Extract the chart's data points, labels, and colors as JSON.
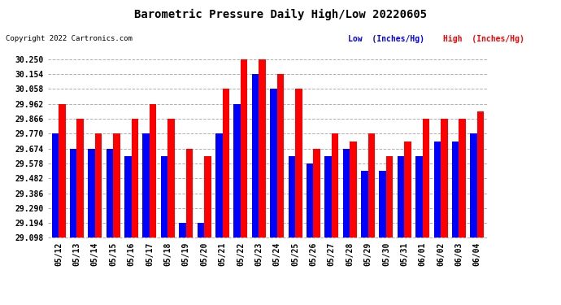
{
  "title": "Barometric Pressure Daily High/Low 20220605",
  "copyright": "Copyright 2022 Cartronics.com",
  "legend_low": "Low  (Inches/Hg)",
  "legend_high": "High  (Inches/Hg)",
  "dates": [
    "05/12",
    "05/13",
    "05/14",
    "05/15",
    "05/16",
    "05/17",
    "05/18",
    "05/19",
    "05/20",
    "05/21",
    "05/22",
    "05/23",
    "05/24",
    "05/25",
    "05/26",
    "05/27",
    "05/28",
    "05/29",
    "05/30",
    "05/31",
    "06/01",
    "06/02",
    "06/03",
    "06/04"
  ],
  "high_values": [
    29.962,
    29.866,
    29.77,
    29.77,
    29.866,
    29.962,
    29.866,
    29.674,
    29.626,
    30.058,
    30.25,
    30.25,
    30.154,
    30.058,
    29.674,
    29.77,
    29.722,
    29.77,
    29.626,
    29.722,
    29.866,
    29.866,
    29.866,
    29.914
  ],
  "low_values": [
    29.77,
    29.674,
    29.674,
    29.674,
    29.626,
    29.77,
    29.626,
    29.194,
    29.194,
    29.77,
    29.962,
    30.154,
    30.058,
    29.626,
    29.578,
    29.626,
    29.674,
    29.53,
    29.53,
    29.626,
    29.626,
    29.722,
    29.722,
    29.77
  ],
  "ylim_min": 29.098,
  "ylim_max": 30.298,
  "yticks": [
    29.098,
    29.194,
    29.29,
    29.386,
    29.482,
    29.578,
    29.674,
    29.77,
    29.866,
    29.962,
    30.058,
    30.154,
    30.25
  ],
  "bar_color_low": "#0000ff",
  "bar_color_high": "#ff0000",
  "bg_color": "#ffffff",
  "grid_color": "#b0b0b0",
  "title_color": "#000000",
  "copyright_color": "#000000",
  "legend_low_color": "#0000ff",
  "legend_high_color": "#ff0000",
  "bar_width": 0.38
}
